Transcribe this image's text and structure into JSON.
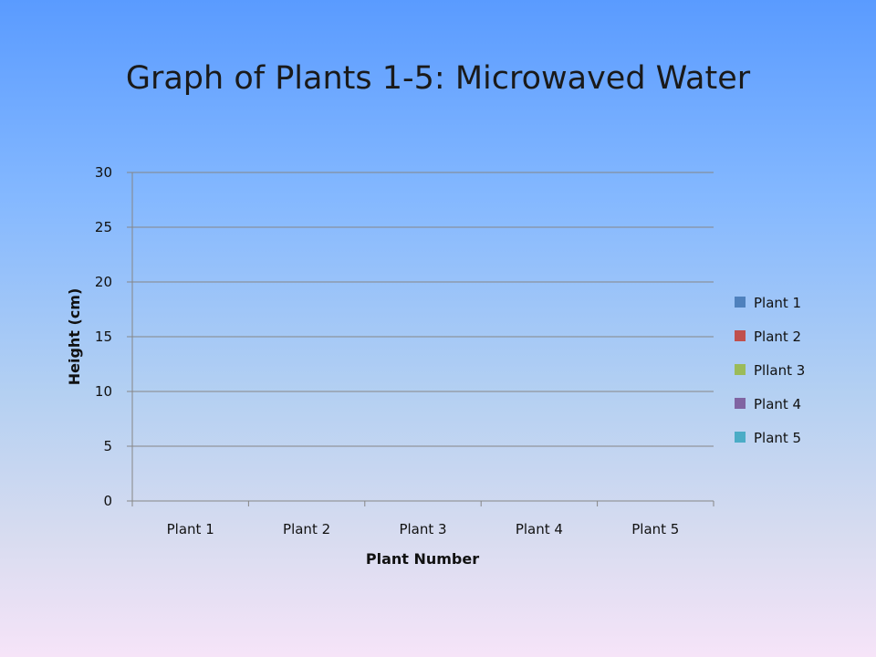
{
  "chart_data": {
    "type": "bar",
    "title": "Graph of Plants 1-5: Microwaved Water",
    "xlabel": "Plant Number",
    "ylabel": "Height (cm)",
    "ylim": [
      0,
      30
    ],
    "yticks": [
      0,
      5,
      10,
      15,
      20,
      25,
      30
    ],
    "grid": true,
    "legend_position": "right",
    "categories": [
      "Plant 1",
      "Plant 2",
      "Plant 3",
      "Plant 4",
      "Plant 5"
    ],
    "series": [
      {
        "name": "Plant 1",
        "color": "#4f81bd",
        "values": [
          0,
          0,
          0,
          0,
          0
        ]
      },
      {
        "name": "Plant 2",
        "color": "#c0504d",
        "values": [
          0,
          0,
          0,
          0,
          0
        ]
      },
      {
        "name": "Pllant 3",
        "color": "#9bbb59",
        "values": [
          0,
          0,
          0,
          0,
          0
        ]
      },
      {
        "name": "Plant 4",
        "color": "#8064a2",
        "values": [
          0,
          0,
          0,
          0,
          0
        ]
      },
      {
        "name": "Plant 5",
        "color": "#4bacc6",
        "values": [
          0,
          0,
          0,
          0,
          0
        ]
      }
    ]
  }
}
